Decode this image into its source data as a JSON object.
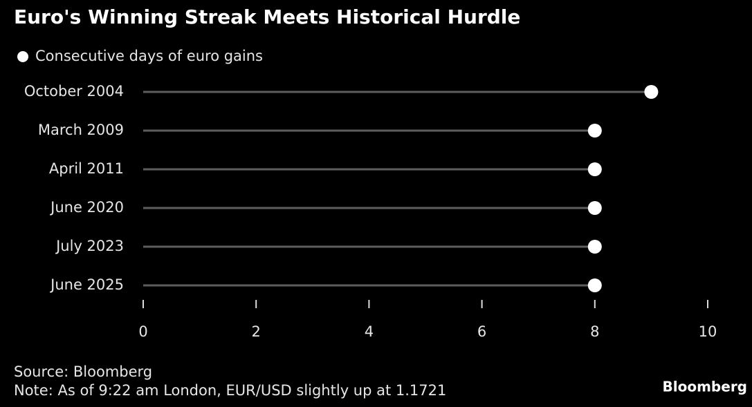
{
  "chart_data": {
    "type": "lollipop",
    "title": "Euro's Winning Streak Meets Historical Hurdle",
    "categories": [
      "October 2004",
      "March 2009",
      "April 2011",
      "June 2020",
      "July 2023",
      "June 2025"
    ],
    "series": [
      {
        "name": "Consecutive days of euro gains",
        "color": "#ffffff",
        "values": [
          9,
          8,
          8,
          8,
          8,
          8
        ]
      }
    ],
    "stem_color": "#5e5e5e",
    "xlim": [
      0,
      10
    ],
    "xticks": [
      0,
      2,
      4,
      6,
      8,
      10
    ],
    "source": "Source: Bloomberg",
    "note": "Note: As of 9:22 am London, EUR/USD slightly up at 1.1721",
    "brand": "Bloomberg"
  }
}
